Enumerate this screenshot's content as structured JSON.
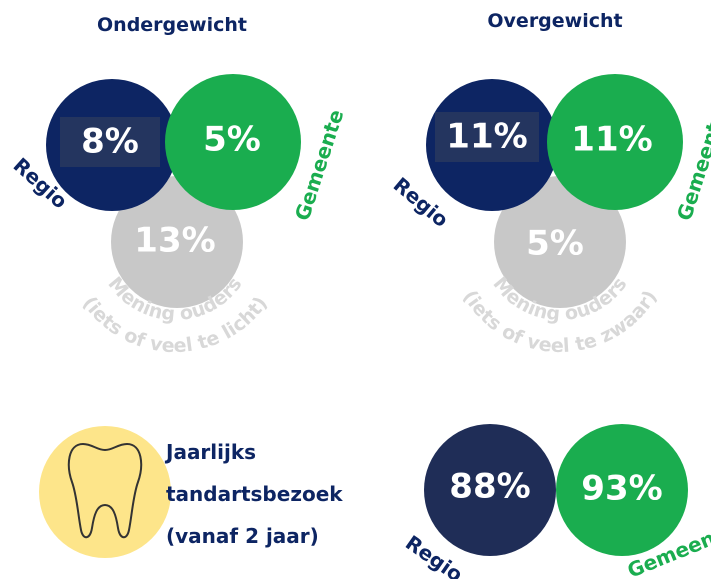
{
  "panels": [
    {
      "title": "Ondergewicht",
      "regio": {
        "label": "Regio",
        "value": "8%"
      },
      "gemeente": {
        "label": "Gemeente",
        "value": "5%"
      },
      "ouders": {
        "value": "13%",
        "lines": [
          "Mening ouders",
          "(iets of veel te licht)"
        ]
      }
    },
    {
      "title": "Overgewicht",
      "regio": {
        "label": "Regio",
        "value": "11%"
      },
      "gemeente": {
        "label": "Gemeente",
        "value": "11%"
      },
      "ouders": {
        "value": "5%",
        "lines": [
          "Mening ouders",
          "(iets of veel te zwaar)"
        ]
      }
    }
  ],
  "dental": {
    "lines": [
      "Jaarlijks",
      "tandartsbezoek",
      "(vanaf 2 jaar)"
    ],
    "regio": {
      "label": "Regio",
      "value": "88%"
    },
    "gemeente": {
      "label": "Gemeente",
      "value": "93%"
    }
  }
}
